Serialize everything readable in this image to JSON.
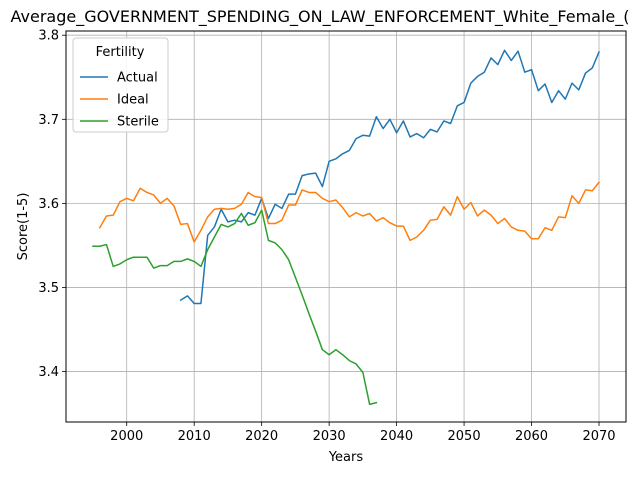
{
  "chart_data": {
    "type": "line",
    "title": "Average_GOVERNMENT_SPENDING_ON_LAW_ENFORCEMENT_White_Female_(",
    "xlabel": "Years",
    "ylabel": "Score(1-5)",
    "xlim": [
      1991,
      2074
    ],
    "ylim": [
      3.34,
      3.805
    ],
    "xticks": [
      2000,
      2010,
      2020,
      2030,
      2040,
      2050,
      2060,
      2070
    ],
    "yticks": [
      3.4,
      3.5,
      3.6,
      3.7,
      3.8
    ],
    "grid": true,
    "legend": {
      "title": "Fertility",
      "placement": "upper left"
    },
    "series": [
      {
        "name": "Actual",
        "color": "#1f77b4",
        "x": [
          2008,
          2009,
          2010,
          2011,
          2012,
          2013,
          2014,
          2015,
          2016,
          2017,
          2018,
          2019,
          2020,
          2021,
          2022,
          2023,
          2024,
          2025,
          2026,
          2027,
          2028,
          2029,
          2030,
          2031,
          2032,
          2033,
          2034,
          2035,
          2036,
          2037,
          2038,
          2039,
          2040,
          2041,
          2042,
          2043,
          2044,
          2045,
          2046,
          2047,
          2048,
          2049,
          2050,
          2051,
          2052,
          2053,
          2054,
          2055,
          2056,
          2057,
          2058,
          2059,
          2060,
          2061,
          2062,
          2063,
          2064,
          2065,
          2066,
          2067,
          2068,
          2069,
          2070
        ],
        "y": [
          3.485,
          3.49,
          3.481,
          3.481,
          3.562,
          3.572,
          3.593,
          3.578,
          3.58,
          3.578,
          3.589,
          3.586,
          3.606,
          3.582,
          3.599,
          3.594,
          3.611,
          3.611,
          3.633,
          3.635,
          3.636,
          3.62,
          3.65,
          3.653,
          3.659,
          3.663,
          3.677,
          3.681,
          3.68,
          3.703,
          3.689,
          3.7,
          3.684,
          3.698,
          3.679,
          3.683,
          3.678,
          3.688,
          3.685,
          3.698,
          3.695,
          3.716,
          3.72,
          3.743,
          3.751,
          3.756,
          3.773,
          3.765,
          3.782,
          3.77,
          3.781,
          3.756,
          3.759,
          3.734,
          3.742,
          3.72,
          3.734,
          3.724,
          3.743,
          3.735,
          3.755,
          3.761,
          3.78
        ]
      },
      {
        "name": "Ideal",
        "color": "#ff7f0e",
        "x": [
          1996,
          1997,
          1998,
          1999,
          2000,
          2001,
          2002,
          2003,
          2004,
          2005,
          2006,
          2007,
          2008,
          2009,
          2010,
          2011,
          2012,
          2013,
          2014,
          2015,
          2016,
          2017,
          2018,
          2019,
          2020,
          2021,
          2022,
          2023,
          2024,
          2025,
          2026,
          2027,
          2028,
          2029,
          2030,
          2031,
          2032,
          2033,
          2034,
          2035,
          2036,
          2037,
          2038,
          2039,
          2040,
          2041,
          2042,
          2043,
          2044,
          2045,
          2046,
          2047,
          2048,
          2049,
          2050,
          2051,
          2052,
          2053,
          2054,
          2055,
          2056,
          2057,
          2058,
          2059,
          2060,
          2061,
          2062,
          2063,
          2064,
          2065,
          2066,
          2067,
          2068,
          2069,
          2070
        ],
        "y": [
          3.571,
          3.585,
          3.586,
          3.602,
          3.606,
          3.603,
          3.618,
          3.613,
          3.61,
          3.6,
          3.606,
          3.597,
          3.575,
          3.576,
          3.554,
          3.568,
          3.584,
          3.593,
          3.594,
          3.593,
          3.594,
          3.599,
          3.613,
          3.608,
          3.607,
          3.576,
          3.576,
          3.58,
          3.598,
          3.598,
          3.616,
          3.613,
          3.613,
          3.606,
          3.602,
          3.604,
          3.595,
          3.584,
          3.589,
          3.585,
          3.588,
          3.579,
          3.583,
          3.577,
          3.573,
          3.573,
          3.556,
          3.56,
          3.568,
          3.58,
          3.581,
          3.596,
          3.586,
          3.608,
          3.593,
          3.601,
          3.585,
          3.592,
          3.586,
          3.576,
          3.582,
          3.572,
          3.568,
          3.567,
          3.558,
          3.558,
          3.571,
          3.568,
          3.584,
          3.583,
          3.609,
          3.6,
          3.616,
          3.615,
          3.625
        ]
      },
      {
        "name": "Sterile",
        "color": "#2ca02c",
        "x": [
          1995,
          1996,
          1997,
          1998,
          1999,
          2000,
          2001,
          2002,
          2003,
          2004,
          2005,
          2006,
          2007,
          2008,
          2009,
          2010,
          2011,
          2012,
          2013,
          2014,
          2015,
          2016,
          2017,
          2018,
          2019,
          2020,
          2021,
          2022,
          2023,
          2024,
          2025,
          2026,
          2027,
          2028,
          2029,
          2030,
          2031,
          2032,
          2033,
          2034,
          2035,
          2036,
          2037
        ],
        "y": [
          3.549,
          3.549,
          3.551,
          3.525,
          3.528,
          3.533,
          3.536,
          3.536,
          3.536,
          3.523,
          3.526,
          3.526,
          3.531,
          3.531,
          3.534,
          3.531,
          3.525,
          3.545,
          3.56,
          3.575,
          3.572,
          3.576,
          3.588,
          3.574,
          3.577,
          3.592,
          3.556,
          3.553,
          3.545,
          3.533,
          3.512,
          3.491,
          3.469,
          3.448,
          3.426,
          3.42,
          3.426,
          3.42,
          3.413,
          3.409,
          3.399,
          3.361,
          3.363
        ]
      }
    ]
  }
}
